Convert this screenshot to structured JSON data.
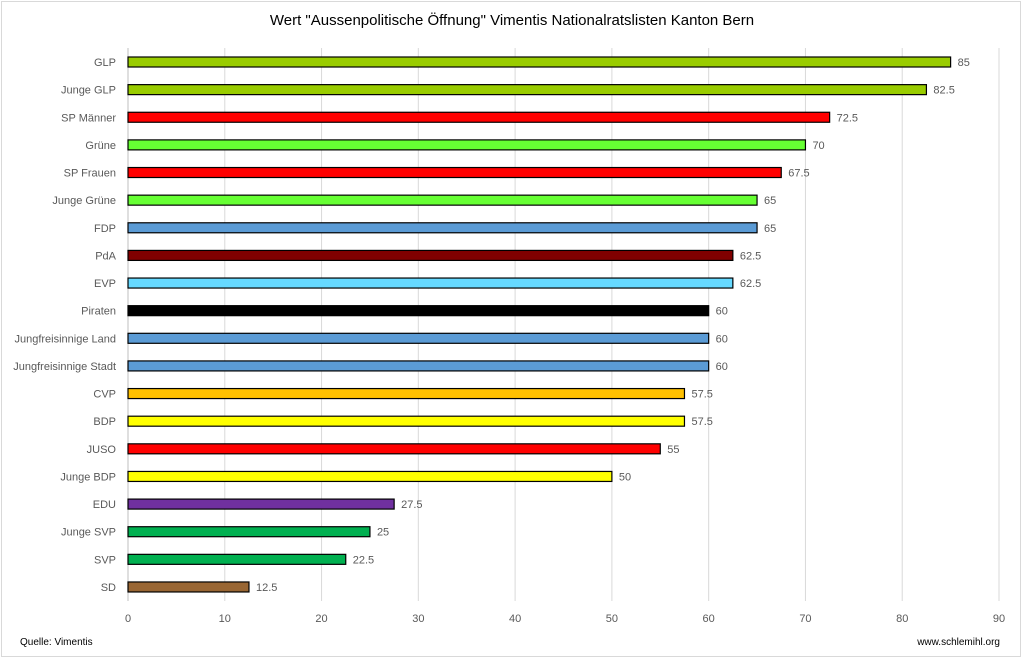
{
  "chart_data": {
    "type": "bar",
    "orientation": "horizontal",
    "title": "Wert \"Aussenpolitische Öffnung\" Vimentis Nationalratslisten Kanton Bern",
    "xlabel": "",
    "ylabel": "",
    "xlim": [
      0,
      90
    ],
    "xticks": [
      0,
      10,
      20,
      30,
      40,
      50,
      60,
      70,
      80,
      90
    ],
    "grid": true,
    "categories": [
      "GLP",
      "Junge GLP",
      "SP Männer",
      "Grüne",
      "SP Frauen",
      "Junge Grüne",
      "FDP",
      "PdA",
      "EVP",
      "Piraten",
      "Jungfreisinnige Land",
      "Jungfreisinnige Stadt",
      "CVP",
      "BDP",
      "JUSO",
      "Junge BDP",
      "EDU",
      "Junge SVP",
      "SVP",
      "SD"
    ],
    "values": [
      85,
      82.5,
      72.5,
      70,
      67.5,
      65,
      65,
      62.5,
      62.5,
      60,
      60,
      60,
      57.5,
      57.5,
      55,
      50,
      27.5,
      25,
      22.5,
      12.5
    ],
    "colors": [
      "#99cc00",
      "#99cc00",
      "#ff0000",
      "#66ff33",
      "#ff0000",
      "#66ff33",
      "#5b9bd5",
      "#800000",
      "#66d9ff",
      "#000000",
      "#5b9bd5",
      "#5b9bd5",
      "#ffc000",
      "#ffff00",
      "#ff0000",
      "#ffff00",
      "#7030a0",
      "#00b050",
      "#00b050",
      "#996633"
    ]
  },
  "footer": {
    "source": "Quelle: Vimentis",
    "website": "www.schlemihl.org"
  }
}
